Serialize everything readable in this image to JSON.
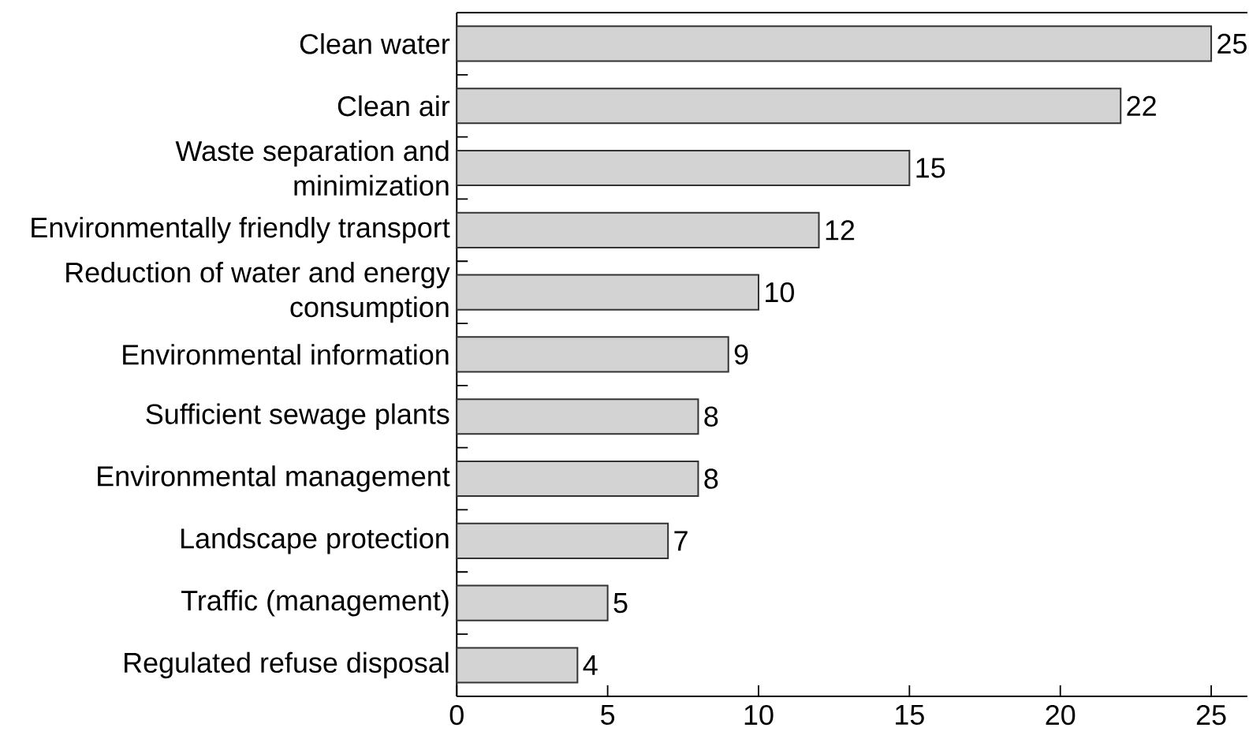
{
  "chart_data": {
    "type": "bar",
    "orientation": "horizontal",
    "categories": [
      "Clean water",
      "Clean air",
      "Waste separation and minimization",
      "Environmentally friendly transport",
      "Reduction of water and energy consumption",
      "Environmental information",
      "Sufficient sewage plants",
      "Environmental management",
      "Landscape protection",
      "Traffic (management)",
      "Regulated refuse disposal"
    ],
    "values": [
      25,
      22,
      15,
      12,
      10,
      9,
      8,
      8,
      7,
      5,
      4
    ],
    "color": "#d3d3d3",
    "xlim": [
      0,
      26.2
    ],
    "xticks": [
      0,
      5,
      10,
      15,
      20,
      25
    ],
    "data_labels": true
  }
}
